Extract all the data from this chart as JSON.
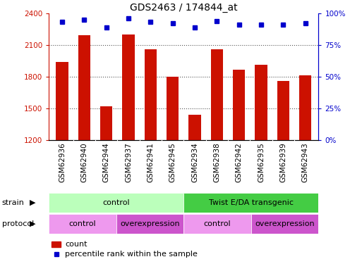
{
  "title": "GDS2463 / 174844_at",
  "samples": [
    "GSM62936",
    "GSM62940",
    "GSM62944",
    "GSM62937",
    "GSM62941",
    "GSM62945",
    "GSM62934",
    "GSM62938",
    "GSM62942",
    "GSM62935",
    "GSM62939",
    "GSM62943"
  ],
  "counts": [
    1940,
    2190,
    1520,
    2200,
    2060,
    1800,
    1440,
    2060,
    1865,
    1910,
    1760,
    1810
  ],
  "percentile_ranks": [
    93,
    95,
    89,
    96,
    93,
    92,
    89,
    94,
    91,
    91,
    91,
    92
  ],
  "ylim_left": [
    1200,
    2400
  ],
  "ylim_right": [
    0,
    100
  ],
  "yticks_left": [
    1200,
    1500,
    1800,
    2100,
    2400
  ],
  "yticks_right": [
    0,
    25,
    50,
    75,
    100
  ],
  "bar_color": "#cc1100",
  "dot_color": "#0000cc",
  "background_color": "#ffffff",
  "xtick_bg": "#cccccc",
  "strain_groups": [
    {
      "label": "control",
      "start": 0,
      "end": 6,
      "color": "#bbffbb"
    },
    {
      "label": "Twist E/DA transgenic",
      "start": 6,
      "end": 12,
      "color": "#44cc44"
    }
  ],
  "protocol_groups": [
    {
      "label": "control",
      "start": 0,
      "end": 3,
      "color": "#ee99ee"
    },
    {
      "label": "overexpression",
      "start": 3,
      "end": 6,
      "color": "#cc55cc"
    },
    {
      "label": "control",
      "start": 6,
      "end": 9,
      "color": "#ee99ee"
    },
    {
      "label": "overexpression",
      "start": 9,
      "end": 12,
      "color": "#cc55cc"
    }
  ],
  "strain_label": "strain",
  "protocol_label": "protocol",
  "legend_count_label": "count",
  "legend_pct_label": "percentile rank within the sample",
  "grid_color": "#555555",
  "grid_linestyle": ":",
  "grid_linewidth": 0.8,
  "bar_width": 0.55,
  "dot_size": 5,
  "title_fontsize": 10,
  "tick_fontsize": 7.5,
  "label_fontsize": 8,
  "annot_fontsize": 8
}
